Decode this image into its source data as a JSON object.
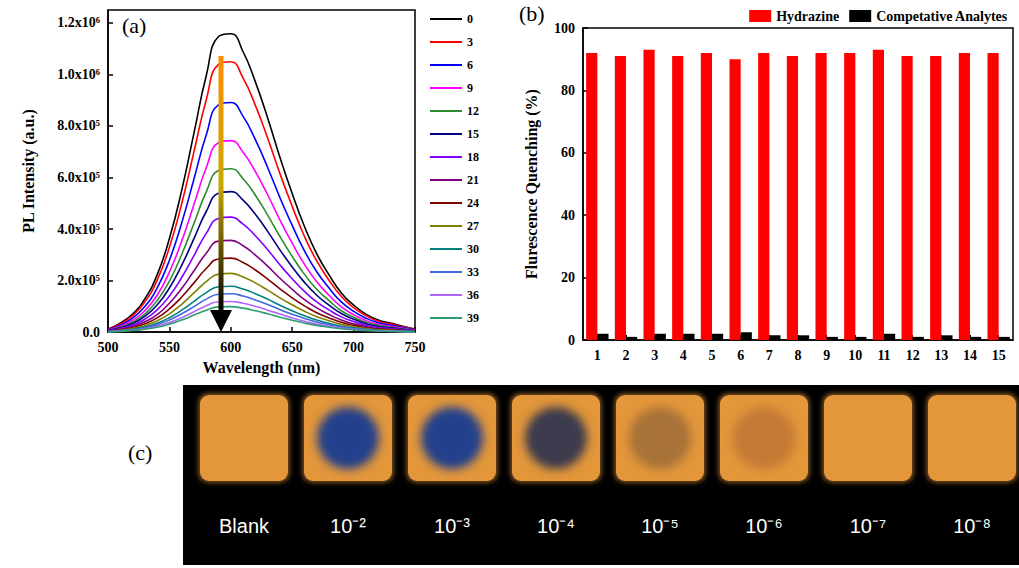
{
  "chart_data": [
    {
      "type": "line",
      "panel_label": "(a)",
      "x_label": "Wavelength (nm)",
      "y_label": "PL Intensity (a.u.)",
      "x": [
        500,
        510,
        520,
        530,
        540,
        550,
        560,
        570,
        580,
        590,
        600,
        610,
        620,
        630,
        640,
        650,
        660,
        670,
        680,
        690,
        700,
        710,
        720,
        730,
        740,
        750
      ],
      "xlim": [
        500,
        750
      ],
      "xticks": [
        500,
        550,
        600,
        650,
        700,
        750
      ],
      "ylim": [
        0,
        1250000
      ],
      "yticks": [
        {
          "value": 0,
          "label": "0.0"
        },
        {
          "value": 200000,
          "label": "2.0x10⁵"
        },
        {
          "value": 400000,
          "label": "4.0x10⁵"
        },
        {
          "value": 600000,
          "label": "6.0x10⁵"
        },
        {
          "value": 800000,
          "label": "8.0x10⁵"
        },
        {
          "value": 1000000,
          "label": "1.0x10⁶"
        },
        {
          "value": 1200000,
          "label": "1.2x10⁶"
        }
      ],
      "grid": false,
      "legend": "right",
      "series": [
        {
          "name": "0",
          "color": "#000000",
          "values": [
            12000,
            35000,
            70000,
            129000,
            222000,
            363000,
            550000,
            772000,
            995000,
            1147000,
            1158000,
            1088000,
            971000,
            831000,
            679000,
            538000,
            410000,
            304000,
            222000,
            152000,
            105000,
            70000,
            47000,
            35000,
            23000,
            12000
          ]
        },
        {
          "name": "3",
          "color": "#ff0000",
          "values": [
            11000,
            32000,
            64000,
            117000,
            201000,
            329000,
            498000,
            700000,
            901000,
            1039000,
            1049000,
            986000,
            880000,
            753000,
            615000,
            488000,
            371000,
            276000,
            201000,
            138000,
            95000,
            64000,
            42000,
            32000,
            21000,
            11000
          ]
        },
        {
          "name": "6",
          "color": "#0000ff",
          "values": [
            9000,
            27000,
            54000,
            99000,
            171000,
            279000,
            423000,
            594000,
            765000,
            882000,
            891000,
            837000,
            747000,
            639000,
            522000,
            414000,
            315000,
            234000,
            171000,
            117000,
            81000,
            54000,
            36000,
            27000,
            18000,
            9000
          ]
        },
        {
          "name": "9",
          "color": "#ff00ff",
          "values": [
            8000,
            23000,
            45000,
            83000,
            143000,
            233000,
            353000,
            495000,
            638000,
            735000,
            743000,
            698000,
            623000,
            533000,
            435000,
            345000,
            263000,
            195000,
            143000,
            98000,
            68000,
            45000,
            30000,
            23000,
            15000,
            8000
          ]
        },
        {
          "name": "12",
          "color": "#2e8b2e",
          "values": [
            6000,
            19000,
            38000,
            70000,
            122000,
            198000,
            301000,
            422000,
            544000,
            627000,
            634000,
            595000,
            531000,
            454000,
            371000,
            294000,
            224000,
            166000,
            122000,
            83000,
            58000,
            38000,
            26000,
            19000,
            13000,
            6000
          ]
        },
        {
          "name": "15",
          "color": "#000080",
          "values": [
            6000,
            17000,
            33000,
            61000,
            105000,
            171000,
            259000,
            363000,
            468000,
            539000,
            545000,
            512000,
            457000,
            391000,
            319000,
            253000,
            193000,
            143000,
            105000,
            72000,
            50000,
            33000,
            22000,
            17000,
            11000,
            6000
          ]
        },
        {
          "name": "18",
          "color": "#8000ff",
          "values": [
            5000,
            14000,
            27000,
            50000,
            86000,
            140000,
            212000,
            297000,
            383000,
            441000,
            446000,
            419000,
            374000,
            320000,
            261000,
            207000,
            158000,
            117000,
            86000,
            59000,
            41000,
            27000,
            18000,
            14000,
            9000,
            5000
          ]
        },
        {
          "name": "21",
          "color": "#800080",
          "values": [
            4000,
            11000,
            22000,
            40000,
            68000,
            112000,
            169000,
            238000,
            306000,
            353000,
            356000,
            335000,
            299000,
            256000,
            209000,
            166000,
            126000,
            94000,
            68000,
            47000,
            32000,
            22000,
            14000,
            11000,
            7000,
            4000
          ]
        },
        {
          "name": "24",
          "color": "#800000",
          "values": [
            3000,
            9000,
            17000,
            32000,
            55000,
            90000,
            136000,
            191000,
            247000,
            284000,
            287000,
            270000,
            241000,
            206000,
            168000,
            133000,
            102000,
            75000,
            55000,
            38000,
            26000,
            17000,
            12000,
            9000,
            6000,
            3000
          ]
        },
        {
          "name": "27",
          "color": "#808000",
          "values": [
            2000,
            7000,
            14000,
            25000,
            44000,
            71000,
            108000,
            152000,
            196000,
            225000,
            228000,
            214000,
            191000,
            163000,
            133000,
            106000,
            81000,
            60000,
            44000,
            30000,
            21000,
            14000,
            9000,
            7000,
            5000,
            2000
          ]
        },
        {
          "name": "30",
          "color": "#008080",
          "values": [
            2000,
            5000,
            11000,
            20000,
            34000,
            56000,
            85000,
            119000,
            153000,
            176000,
            178000,
            167000,
            149000,
            128000,
            104000,
            83000,
            63000,
            47000,
            34000,
            23000,
            16000,
            11000,
            7000,
            5000,
            4000,
            2000
          ]
        },
        {
          "name": "33",
          "color": "#4169e1",
          "values": [
            2000,
            5000,
            9000,
            17000,
            29000,
            47000,
            71000,
            99000,
            128000,
            147000,
            149000,
            140000,
            125000,
            107000,
            87000,
            69000,
            53000,
            39000,
            29000,
            20000,
            14000,
            9000,
            6000,
            5000,
            3000,
            2000
          ]
        },
        {
          "name": "36",
          "color": "#b266ff",
          "values": [
            1000,
            4000,
            7000,
            13000,
            23000,
            37000,
            56000,
            79000,
            102000,
            118000,
            119000,
            112000,
            100000,
            85000,
            70000,
            55000,
            42000,
            31000,
            23000,
            16000,
            11000,
            7000,
            5000,
            4000,
            2000,
            1000
          ]
        },
        {
          "name": "39",
          "color": "#2e9e6e",
          "values": [
            1000,
            3000,
            6000,
            11000,
            19000,
            31000,
            47000,
            66000,
            85000,
            98000,
            99000,
            93000,
            83000,
            71000,
            58000,
            46000,
            35000,
            26000,
            19000,
            13000,
            9000,
            6000,
            4000,
            3000,
            2000,
            1000
          ]
        }
      ]
    },
    {
      "type": "bar",
      "panel_label": "(b)",
      "y_label": "Flurescence Quenching (%)",
      "categories": [
        "1",
        "2",
        "3",
        "4",
        "5",
        "6",
        "7",
        "8",
        "9",
        "10",
        "11",
        "12",
        "13",
        "14",
        "15"
      ],
      "ylim": [
        0,
        100
      ],
      "yticks": [
        0,
        20,
        40,
        60,
        80,
        100
      ],
      "grid": false,
      "legend": "top",
      "series": [
        {
          "name": "Hydrazine",
          "color": "#ff0000",
          "values": [
            92,
            91,
            93,
            91,
            92,
            90,
            92,
            91,
            92,
            92,
            93,
            91,
            91,
            92,
            92
          ]
        },
        {
          "name": "Competative Analytes",
          "color": "#000000",
          "values": [
            2,
            1,
            2,
            2,
            2,
            2.5,
            1.5,
            1.5,
            1,
            1,
            2,
            1,
            1.5,
            1,
            1
          ]
        }
      ]
    }
  ],
  "panel_c": {
    "label": "(c)",
    "background": "#000000",
    "strip_color": "#e3963a",
    "text_color": "#ffffff",
    "strips": [
      {
        "label": "Blank"
      },
      {
        "label": "10⁻²",
        "spot_color": "#23408c"
      },
      {
        "label": "10⁻³",
        "spot_color": "#23408c"
      },
      {
        "label": "10⁻⁴",
        "spot_color": "#3a3a4e"
      },
      {
        "label": "10⁻⁵",
        "spot_color": "#a87238"
      },
      {
        "label": "10⁻⁶",
        "spot_color": "#c47a36"
      },
      {
        "label": "10⁻⁷"
      },
      {
        "label": "10⁻⁸"
      }
    ]
  }
}
